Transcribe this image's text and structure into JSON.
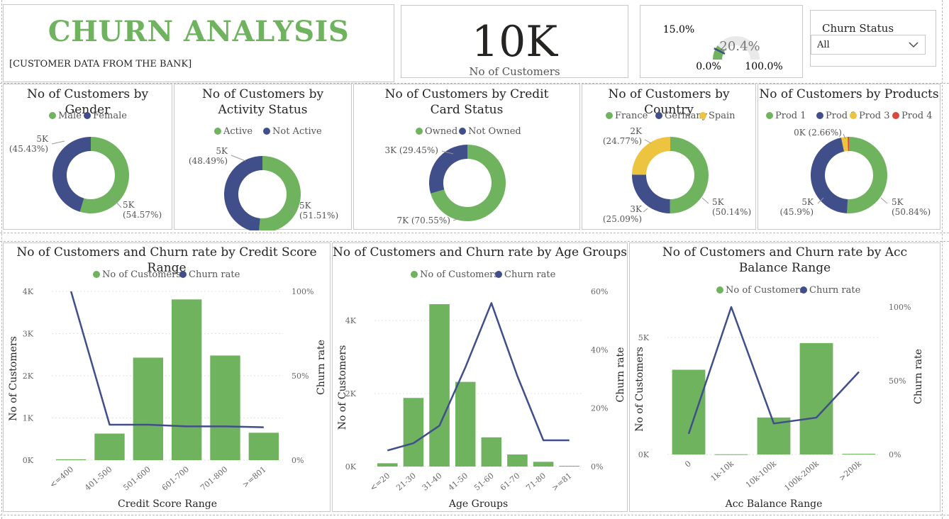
{
  "header": {
    "title": "CHURN ANALYSIS",
    "subtitle": "[CUSTOMER DATA FROM THE BANK]"
  },
  "kpi": {
    "value": "10K",
    "label": "No of Customers"
  },
  "gauge": {
    "value_label": "20.4%",
    "min_label": "0.0%",
    "max_label": "100.0%",
    "target_label": "15.0%",
    "value": 20.4,
    "target": 15.0,
    "min": 0,
    "max": 100,
    "fill_color": "#70b35f",
    "track_color": "#e9e9e9"
  },
  "slicer": {
    "title": "Churn Status",
    "value": "All"
  },
  "colors": {
    "green": "#70b35f",
    "navy": "#404e8a",
    "yellow": "#ecc43f",
    "red": "#d9473f"
  },
  "chart_data": [
    {
      "type": "pie",
      "id": "gender",
      "title": "No of Customers by Gender",
      "legend": [
        "Male",
        "Female"
      ],
      "values": [
        54.57,
        45.43
      ],
      "labels": [
        [
          "5K",
          "(54.57%)"
        ],
        [
          "5K",
          "(45.43%)"
        ]
      ],
      "colors": [
        "#70b35f",
        "#404e8a"
      ]
    },
    {
      "type": "pie",
      "id": "activity",
      "title": "No of Customers by Activity Status",
      "legend": [
        "Active",
        "Not Active"
      ],
      "values": [
        51.51,
        48.49
      ],
      "labels": [
        [
          "5K",
          "(51.51%)"
        ],
        [
          "5K",
          "(48.49%)"
        ]
      ],
      "colors": [
        "#70b35f",
        "#404e8a"
      ]
    },
    {
      "type": "pie",
      "id": "card",
      "title": "No of Customers by Credit Card Status",
      "legend": [
        "Owned",
        "Not Owned"
      ],
      "values": [
        70.55,
        29.45
      ],
      "labels": [
        [
          "7K (70.55%)"
        ],
        [
          "3K (29.45%)"
        ]
      ],
      "colors": [
        "#70b35f",
        "#404e8a"
      ]
    },
    {
      "type": "pie",
      "id": "country",
      "title": "No of Customers by Country",
      "legend": [
        "France",
        "Germany",
        "Spain"
      ],
      "values": [
        50.14,
        25.09,
        24.77
      ],
      "labels": [
        [
          "5K",
          "(50.14%)"
        ],
        [
          "3K",
          "(25.09%)"
        ],
        [
          "2K",
          "(24.77%)"
        ]
      ],
      "colors": [
        "#70b35f",
        "#404e8a",
        "#ecc43f"
      ]
    },
    {
      "type": "pie",
      "id": "products",
      "title": "No of Customers by Products",
      "legend": [
        "Prod 1",
        "Prod 2",
        "Prod 3",
        "Prod 4"
      ],
      "values": [
        50.84,
        45.9,
        2.66,
        0.6
      ],
      "labels": [
        [
          "5K",
          "(50.84%)"
        ],
        [
          "5K",
          "(45.9%)"
        ],
        [
          "0K (2.66%)"
        ],
        []
      ],
      "colors": [
        "#70b35f",
        "#404e8a",
        "#ecc43f",
        "#d9473f"
      ]
    },
    {
      "type": "bar",
      "id": "credit",
      "title": "No of Customers and Churn rate by Credit Score Range",
      "legend": [
        "No of Customers",
        "Churn rate"
      ],
      "categories": [
        "<=400",
        "401-500",
        "501-600",
        "601-700",
        "701-800",
        ">=801"
      ],
      "bar_values": [
        20,
        630,
        2430,
        3810,
        2480,
        650
      ],
      "line_values": [
        100,
        21,
        21,
        20,
        20,
        19.5
      ],
      "ylim_left": [
        0,
        4000
      ],
      "yticks_left": [
        "0K",
        "1K",
        "2K",
        "3K",
        "4K"
      ],
      "ylim_right": [
        0,
        100
      ],
      "yticks_right": [
        "0%",
        "50%",
        "100%"
      ],
      "xlabel": "Credit Score Range",
      "ylabel_left": "No of Customers",
      "ylabel_right": "Churn rate"
    },
    {
      "type": "bar",
      "id": "age",
      "title": "No of Customers and Churn rate by Age Groups",
      "legend": [
        "No of Customers",
        "Churn rate"
      ],
      "categories": [
        "<=20",
        "21-30",
        "31-40",
        "41-50",
        "51-60",
        "61-70",
        "71-80",
        ">=81"
      ],
      "bar_values": [
        90,
        1880,
        4450,
        2320,
        800,
        330,
        130,
        20
      ],
      "line_values": [
        5.5,
        8,
        14,
        34,
        56,
        31,
        9,
        9
      ],
      "ylim_left": [
        0,
        4800
      ],
      "yticks_left": [
        "0K",
        "2K",
        "4K"
      ],
      "ylim_right": [
        0,
        60
      ],
      "yticks_right": [
        "0%",
        "20%",
        "40%",
        "60%"
      ],
      "xlabel": "Age Groups",
      "ylabel_left": "No of Customers",
      "ylabel_right": "Churn rate"
    },
    {
      "type": "bar",
      "id": "balance",
      "title": "No of Customers and Churn rate by Acc Balance Range",
      "legend": [
        "No of Customers",
        "Churn rate"
      ],
      "categories": [
        "0",
        "1k-10k",
        "10k-100k",
        "100k-200k",
        ">200k"
      ],
      "bar_values": [
        3620,
        10,
        1580,
        4760,
        30
      ],
      "line_values": [
        14,
        100,
        21,
        25,
        56
      ],
      "ylim_left": [
        0,
        6300
      ],
      "yticks_left": [
        "0K",
        "5K"
      ],
      "ylim_right": [
        0,
        100
      ],
      "yticks_right": [
        "0%",
        "50%",
        "100%"
      ],
      "xlabel": "Acc Balance Range",
      "ylabel_left": "No of Customers",
      "ylabel_right": "Churn rate"
    }
  ]
}
